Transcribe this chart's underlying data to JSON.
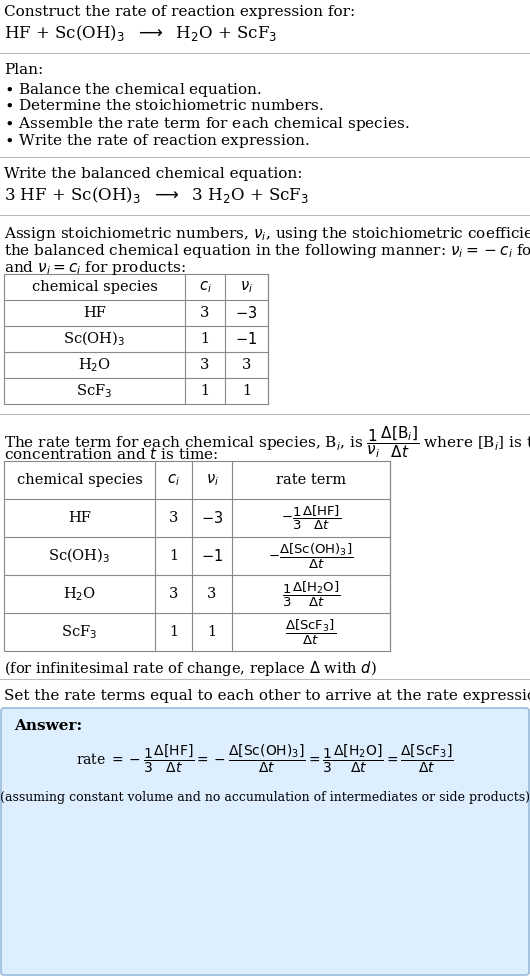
{
  "bg_color": "#ffffff",
  "light_blue_bg": "#ddeeff",
  "table_border_color": "#888888",
  "text_color": "#000000",
  "title_text": "Construct the rate of reaction expression for:",
  "reaction_unbalanced": "HF + Sc(OH)$_3$  $\\longrightarrow$  H$_2$O + ScF$_3$",
  "plan_header": "Plan:",
  "plan_items": [
    "$\\bullet$ Balance the chemical equation.",
    "$\\bullet$ Determine the stoichiometric numbers.",
    "$\\bullet$ Assemble the rate term for each chemical species.",
    "$\\bullet$ Write the rate of reaction expression."
  ],
  "balanced_header": "Write the balanced chemical equation:",
  "reaction_balanced": "3 HF + Sc(OH)$_3$  $\\longrightarrow$  3 H$_2$O + ScF$_3$",
  "assign_line1": "Assign stoichiometric numbers, $\\nu_i$, using the stoichiometric coefficients, $c_i$, from",
  "assign_line2": "the balanced chemical equation in the following manner: $\\nu_i = -c_i$ for reactants",
  "assign_line3": "and $\\nu_i = c_i$ for products:",
  "table1_headers": [
    "chemical species",
    "$c_i$",
    "$\\nu_i$"
  ],
  "table1_rows": [
    [
      "HF",
      "3",
      "$-3$"
    ],
    [
      "Sc(OH)$_3$",
      "1",
      "$-1$"
    ],
    [
      "H$_2$O",
      "3",
      "3"
    ],
    [
      "ScF$_3$",
      "1",
      "1"
    ]
  ],
  "rate_line1": "The rate term for each chemical species, B$_i$, is $\\dfrac{1}{\\nu_i}\\dfrac{\\Delta[\\mathrm{B}_i]}{\\Delta t}$ where [B$_i$] is the amount",
  "rate_line2": "concentration and $t$ is time:",
  "table2_headers": [
    "chemical species",
    "$c_i$",
    "$\\nu_i$",
    "rate term"
  ],
  "table2_rows": [
    [
      "HF",
      "3",
      "$-3$",
      "$-\\dfrac{1}{3}\\dfrac{\\Delta[\\mathrm{HF}]}{\\Delta t}$"
    ],
    [
      "Sc(OH)$_3$",
      "1",
      "$-1$",
      "$-\\dfrac{\\Delta[\\mathrm{Sc(OH)_3}]}{\\Delta t}$"
    ],
    [
      "H$_2$O",
      "3",
      "3",
      "$\\dfrac{1}{3}\\dfrac{\\Delta[\\mathrm{H_2O}]}{\\Delta t}$"
    ],
    [
      "ScF$_3$",
      "1",
      "1",
      "$\\dfrac{\\Delta[\\mathrm{ScF_3}]}{\\Delta t}$"
    ]
  ],
  "infinitesimal_note": "(for infinitesimal rate of change, replace $\\Delta$ with $d$)",
  "set_equal_header": "Set the rate terms equal to each other to arrive at the rate expression:",
  "answer_label": "Answer:",
  "rate_expression": "rate $= -\\dfrac{1}{3}\\dfrac{\\Delta[\\mathrm{HF}]}{\\Delta t} = -\\dfrac{\\Delta[\\mathrm{Sc(OH)_3}]}{\\Delta t} = \\dfrac{1}{3}\\dfrac{\\Delta[\\mathrm{H_2O}]}{\\Delta t} = \\dfrac{\\Delta[\\mathrm{ScF_3}]}{\\Delta t}$",
  "assuming_note": "(assuming constant volume and no accumulation of intermediates or side products)"
}
